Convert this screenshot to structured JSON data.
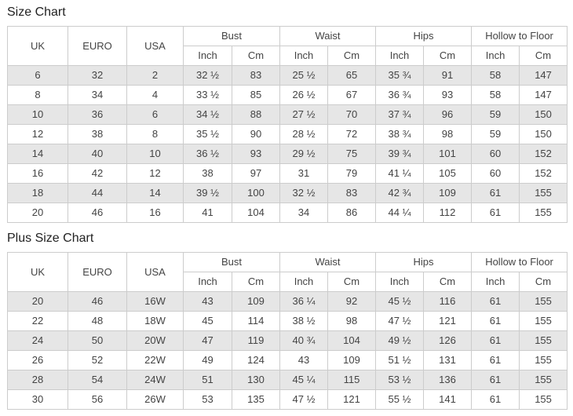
{
  "colors": {
    "background": "#ffffff",
    "row_shade": "#e6e6e6",
    "border": "#cccccc",
    "cell_text": "#444444",
    "heading_text": "#222222"
  },
  "chart_data": [
    {
      "type": "table",
      "title": "Size Chart",
      "simple_columns": [
        "UK",
        "EURO",
        "USA"
      ],
      "group_columns": [
        "Bust",
        "Waist",
        "Hips",
        "Hollow to Floor"
      ],
      "sub_columns": [
        "Inch",
        "Cm"
      ],
      "rows": [
        [
          "6",
          "32",
          "2",
          "32 ½",
          "83",
          "25 ½",
          "65",
          "35 ¾",
          "91",
          "58",
          "147"
        ],
        [
          "8",
          "34",
          "4",
          "33 ½",
          "85",
          "26 ½",
          "67",
          "36 ¾",
          "93",
          "58",
          "147"
        ],
        [
          "10",
          "36",
          "6",
          "34 ½",
          "88",
          "27 ½",
          "70",
          "37 ¾",
          "96",
          "59",
          "150"
        ],
        [
          "12",
          "38",
          "8",
          "35 ½",
          "90",
          "28 ½",
          "72",
          "38 ¾",
          "98",
          "59",
          "150"
        ],
        [
          "14",
          "40",
          "10",
          "36 ½",
          "93",
          "29 ½",
          "75",
          "39 ¾",
          "101",
          "60",
          "152"
        ],
        [
          "16",
          "42",
          "12",
          "38",
          "97",
          "31",
          "79",
          "41 ¼",
          "105",
          "60",
          "152"
        ],
        [
          "18",
          "44",
          "14",
          "39 ½",
          "100",
          "32 ½",
          "83",
          "42 ¾",
          "109",
          "61",
          "155"
        ],
        [
          "20",
          "46",
          "16",
          "41",
          "104",
          "34",
          "86",
          "44 ¼",
          "112",
          "61",
          "155"
        ]
      ]
    },
    {
      "type": "table",
      "title": "Plus Size Chart",
      "simple_columns": [
        "UK",
        "EURO",
        "USA"
      ],
      "group_columns": [
        "Bust",
        "Waist",
        "Hips",
        "Hollow to Floor"
      ],
      "sub_columns": [
        "Inch",
        "Cm"
      ],
      "rows": [
        [
          "20",
          "46",
          "16W",
          "43",
          "109",
          "36 ¼",
          "92",
          "45 ½",
          "116",
          "61",
          "155"
        ],
        [
          "22",
          "48",
          "18W",
          "45",
          "114",
          "38 ½",
          "98",
          "47 ½",
          "121",
          "61",
          "155"
        ],
        [
          "24",
          "50",
          "20W",
          "47",
          "119",
          "40 ¾",
          "104",
          "49 ½",
          "126",
          "61",
          "155"
        ],
        [
          "26",
          "52",
          "22W",
          "49",
          "124",
          "43",
          "109",
          "51 ½",
          "131",
          "61",
          "155"
        ],
        [
          "28",
          "54",
          "24W",
          "51",
          "130",
          "45 ¼",
          "115",
          "53 ½",
          "136",
          "61",
          "155"
        ],
        [
          "30",
          "56",
          "26W",
          "53",
          "135",
          "47 ½",
          "121",
          "55 ½",
          "141",
          "61",
          "155"
        ]
      ]
    }
  ]
}
